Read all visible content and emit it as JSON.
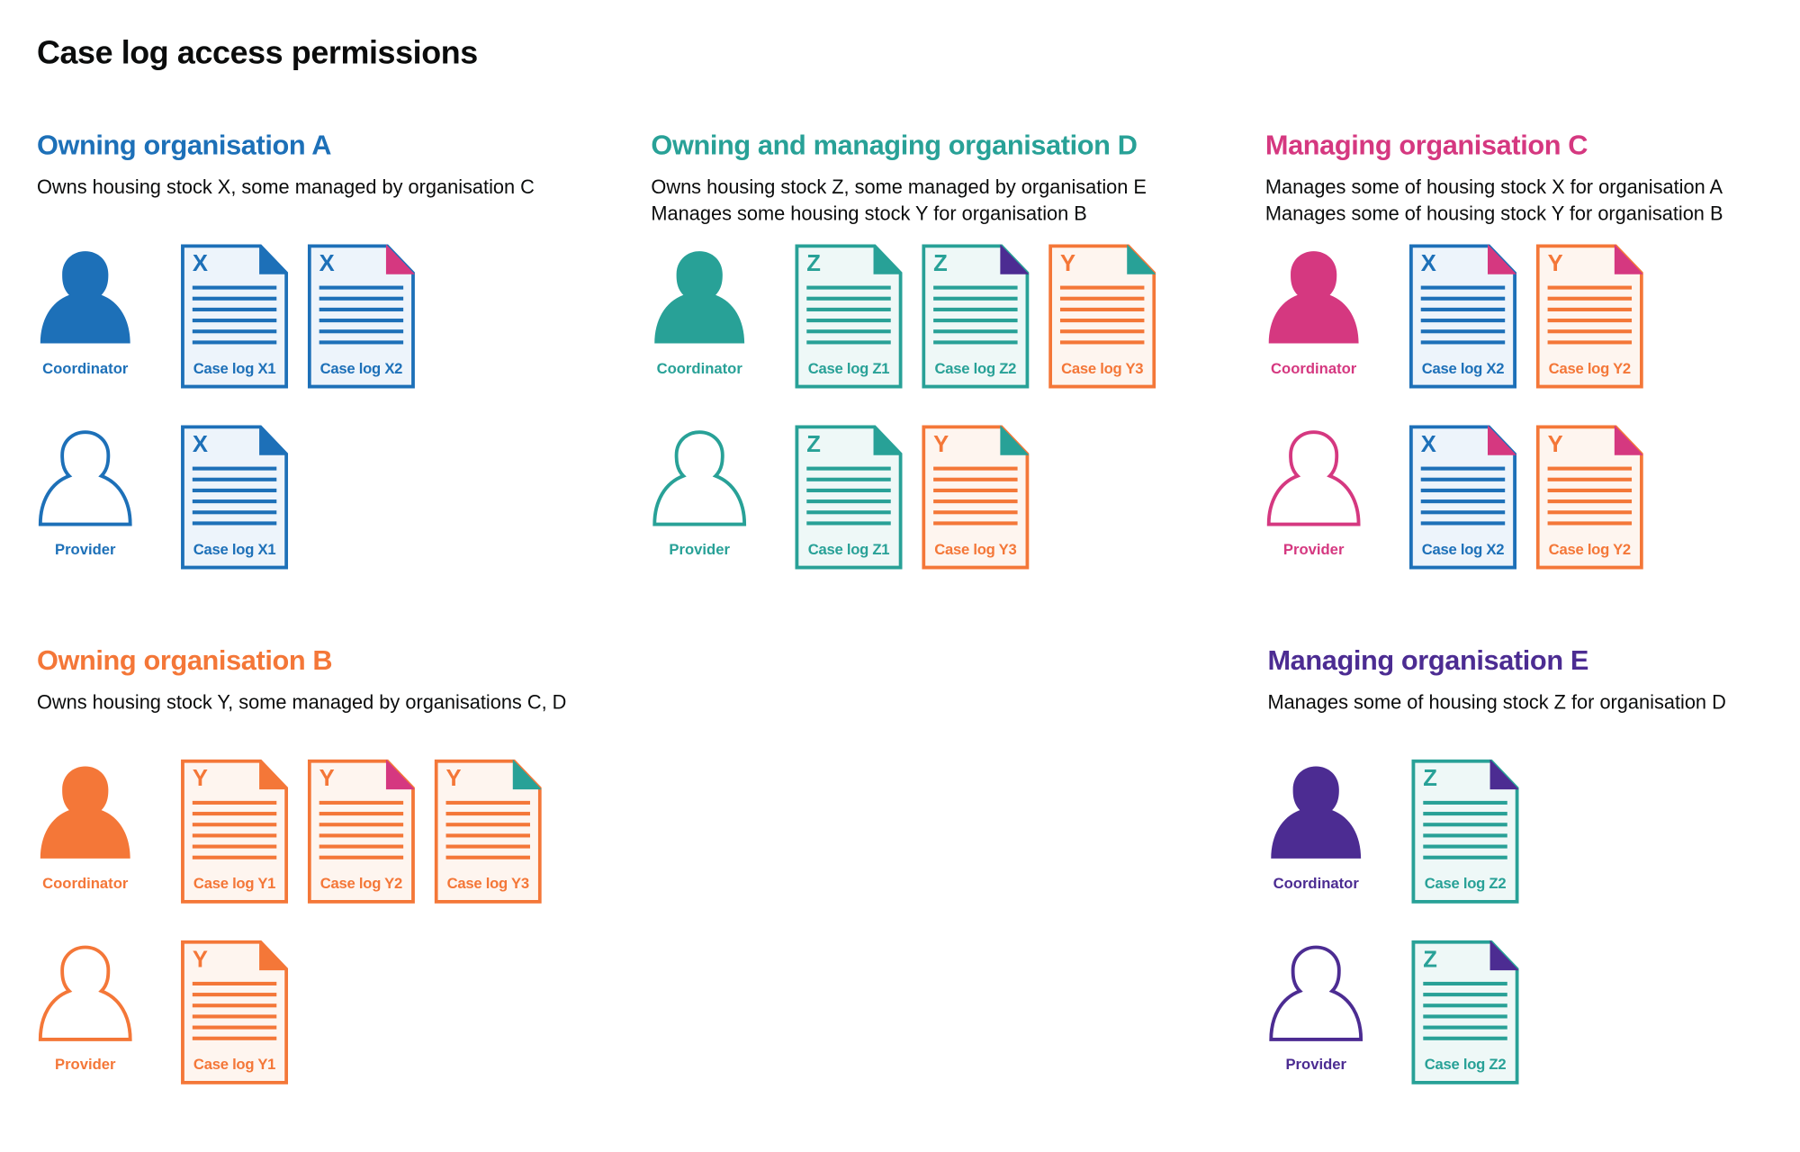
{
  "title": "Case log access permissions",
  "colors": {
    "blue": "#1d70b8",
    "teal": "#28a197",
    "pink": "#d53880",
    "orange": "#f47738",
    "purple": "#4c2c92"
  },
  "sections": [
    {
      "id": "owning-organisation-a",
      "heading": "Owning organisation A",
      "color": "blue",
      "desc": [
        "Owns housing stock X, some managed by organisation C"
      ],
      "rows": [
        {
          "role": "Coordinator",
          "filled": true,
          "docs": [
            {
              "letter": "X",
              "label": "Case log X1",
              "color": "blue",
              "fold": "blue"
            },
            {
              "letter": "X",
              "label": "Case log X2",
              "color": "blue",
              "fold": "pink"
            }
          ]
        },
        {
          "role": "Provider",
          "filled": false,
          "docs": [
            {
              "letter": "X",
              "label": "Case log X1",
              "color": "blue",
              "fold": "blue"
            }
          ]
        }
      ]
    },
    {
      "id": "owning-and-managing-organisation-d",
      "heading": "Owning and managing organisation D",
      "color": "teal",
      "desc": [
        "Owns housing stock Z, some managed by organisation E",
        "Manages some housing stock Y for organisation B"
      ],
      "rows": [
        {
          "role": "Coordinator",
          "filled": true,
          "docs": [
            {
              "letter": "Z",
              "label": "Case log Z1",
              "color": "teal",
              "fold": "teal"
            },
            {
              "letter": "Z",
              "label": "Case log Z2",
              "color": "teal",
              "fold": "purple"
            },
            {
              "letter": "Y",
              "label": "Case log Y3",
              "color": "orange",
              "fold": "teal"
            }
          ]
        },
        {
          "role": "Provider",
          "filled": false,
          "docs": [
            {
              "letter": "Z",
              "label": "Case log Z1",
              "color": "teal",
              "fold": "teal"
            },
            {
              "letter": "Y",
              "label": "Case log Y3",
              "color": "orange",
              "fold": "teal"
            }
          ]
        }
      ]
    },
    {
      "id": "managing-organisation-c",
      "heading": "Managing organisation C",
      "color": "pink",
      "desc": [
        "Manages some of housing stock X for organisation A",
        "Manages some of housing stock Y for organisation B"
      ],
      "rows": [
        {
          "role": "Coordinator",
          "filled": true,
          "docs": [
            {
              "letter": "X",
              "label": "Case log X2",
              "color": "blue",
              "fold": "pink"
            },
            {
              "letter": "Y",
              "label": "Case log Y2",
              "color": "orange",
              "fold": "pink"
            }
          ]
        },
        {
          "role": "Provider",
          "filled": false,
          "docs": [
            {
              "letter": "X",
              "label": "Case log X2",
              "color": "blue",
              "fold": "pink"
            },
            {
              "letter": "Y",
              "label": "Case log Y2",
              "color": "orange",
              "fold": "pink"
            }
          ]
        }
      ]
    },
    {
      "id": "owning-organisation-b",
      "heading": "Owning organisation B",
      "color": "orange",
      "desc": [
        "Owns housing stock Y, some managed by organisations C, D"
      ],
      "rows": [
        {
          "role": "Coordinator",
          "filled": true,
          "docs": [
            {
              "letter": "Y",
              "label": "Case log Y1",
              "color": "orange",
              "fold": "orange"
            },
            {
              "letter": "Y",
              "label": "Case log Y2",
              "color": "orange",
              "fold": "pink"
            },
            {
              "letter": "Y",
              "label": "Case log Y3",
              "color": "orange",
              "fold": "teal"
            }
          ]
        },
        {
          "role": "Provider",
          "filled": false,
          "docs": [
            {
              "letter": "Y",
              "label": "Case log Y1",
              "color": "orange",
              "fold": "orange"
            }
          ]
        }
      ]
    },
    {
      "id": "managing-organisation-e",
      "heading": "Managing organisation E",
      "color": "purple",
      "desc": [
        "Manages some of housing stock Z for organisation D"
      ],
      "rows": [
        {
          "role": "Coordinator",
          "filled": true,
          "docs": [
            {
              "letter": "Z",
              "label": "Case log Z2",
              "color": "teal",
              "fold": "purple"
            }
          ]
        },
        {
          "role": "Provider",
          "filled": false,
          "docs": [
            {
              "letter": "Z",
              "label": "Case log Z2",
              "color": "teal",
              "fold": "purple"
            }
          ]
        }
      ]
    }
  ]
}
